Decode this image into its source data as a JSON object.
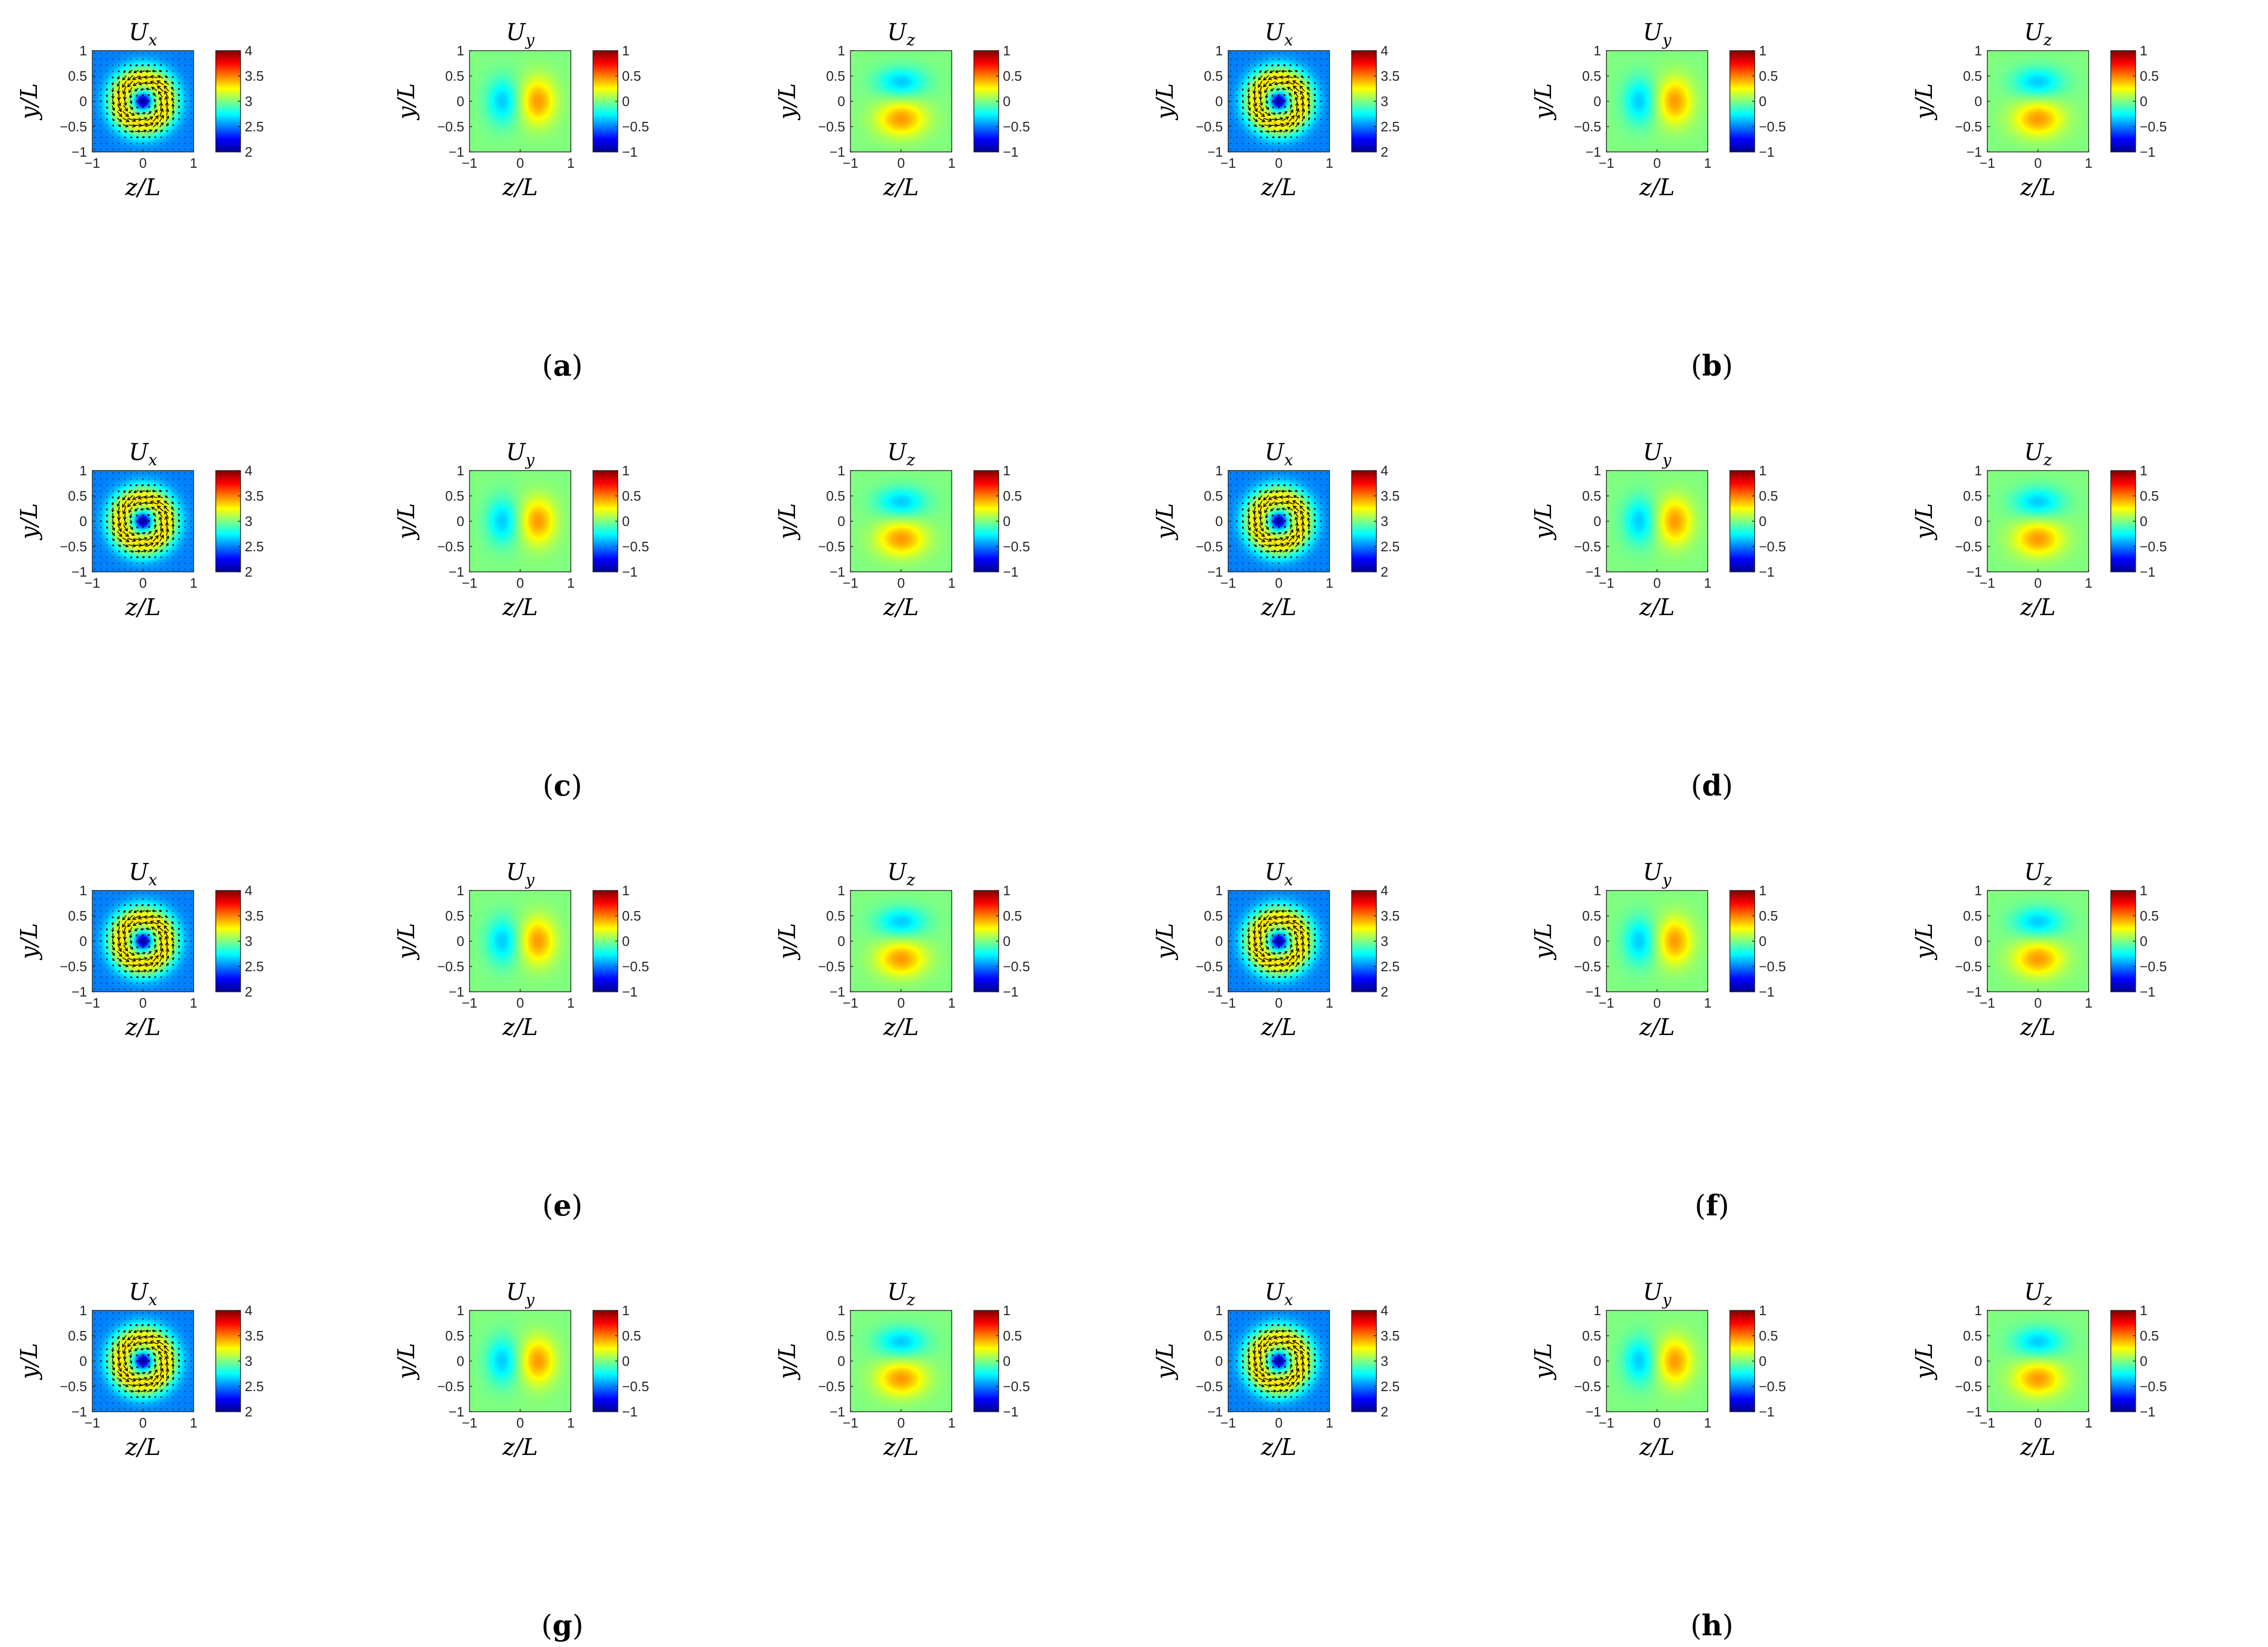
{
  "figure": {
    "rows": 4,
    "columns_per_row": 6,
    "panel_labels": [
      "a",
      "b",
      "c",
      "d",
      "e",
      "f",
      "g",
      "h"
    ],
    "colormap": "jet",
    "jet_colors": [
      "#00008f",
      "#0000ff",
      "#0080ff",
      "#00ffff",
      "#80ff80",
      "#ffff00",
      "#ff8000",
      "#ff0000",
      "#800000"
    ]
  },
  "chart_data": {
    "type": "heatmap",
    "subplot_titles": [
      {
        "symbol": "U",
        "subscript": "x"
      },
      {
        "symbol": "U",
        "subscript": "y"
      },
      {
        "symbol": "U",
        "subscript": "z"
      },
      {
        "symbol": "U",
        "subscript": "x"
      },
      {
        "symbol": "U",
        "subscript": "y"
      },
      {
        "symbol": "U",
        "subscript": "z"
      }
    ],
    "xlabel": "z/L",
    "ylabel": "y/L",
    "xlim": [
      -1,
      1
    ],
    "ylim": [
      -1,
      1
    ],
    "x_ticks": [
      "-1",
      "0",
      "1"
    ],
    "y_ticks": [
      "-1",
      "-0.5",
      "0",
      "0.5",
      "1"
    ],
    "colorbar_ux": {
      "range": [
        2,
        4
      ],
      "ticks": [
        "2",
        "2.5",
        "3",
        "3.5",
        "4"
      ]
    },
    "colorbar_uyz": {
      "range": [
        -1,
        1
      ],
      "ticks": [
        "-1",
        "-0.5",
        "0",
        "0.5",
        "1"
      ]
    },
    "ux_field": {
      "background": 2.5,
      "ring_peak": 3.3,
      "core_min": 2.0,
      "ring_radius": 0.45,
      "ring_width": 0.28,
      "core_radius": 0.12,
      "has_vector_overlay": true
    },
    "uy_field": {
      "negative_lobe": {
        "z": -0.35,
        "y": 0.0,
        "value": -0.35
      },
      "positive_lobe": {
        "z": 0.35,
        "y": 0.0,
        "value": 0.45
      }
    },
    "uz_field": {
      "negative_lobe": {
        "z": 0.0,
        "y": 0.38,
        "value": -0.35
      },
      "positive_lobe": {
        "z": 0.0,
        "y": -0.35,
        "value": 0.45
      }
    }
  }
}
